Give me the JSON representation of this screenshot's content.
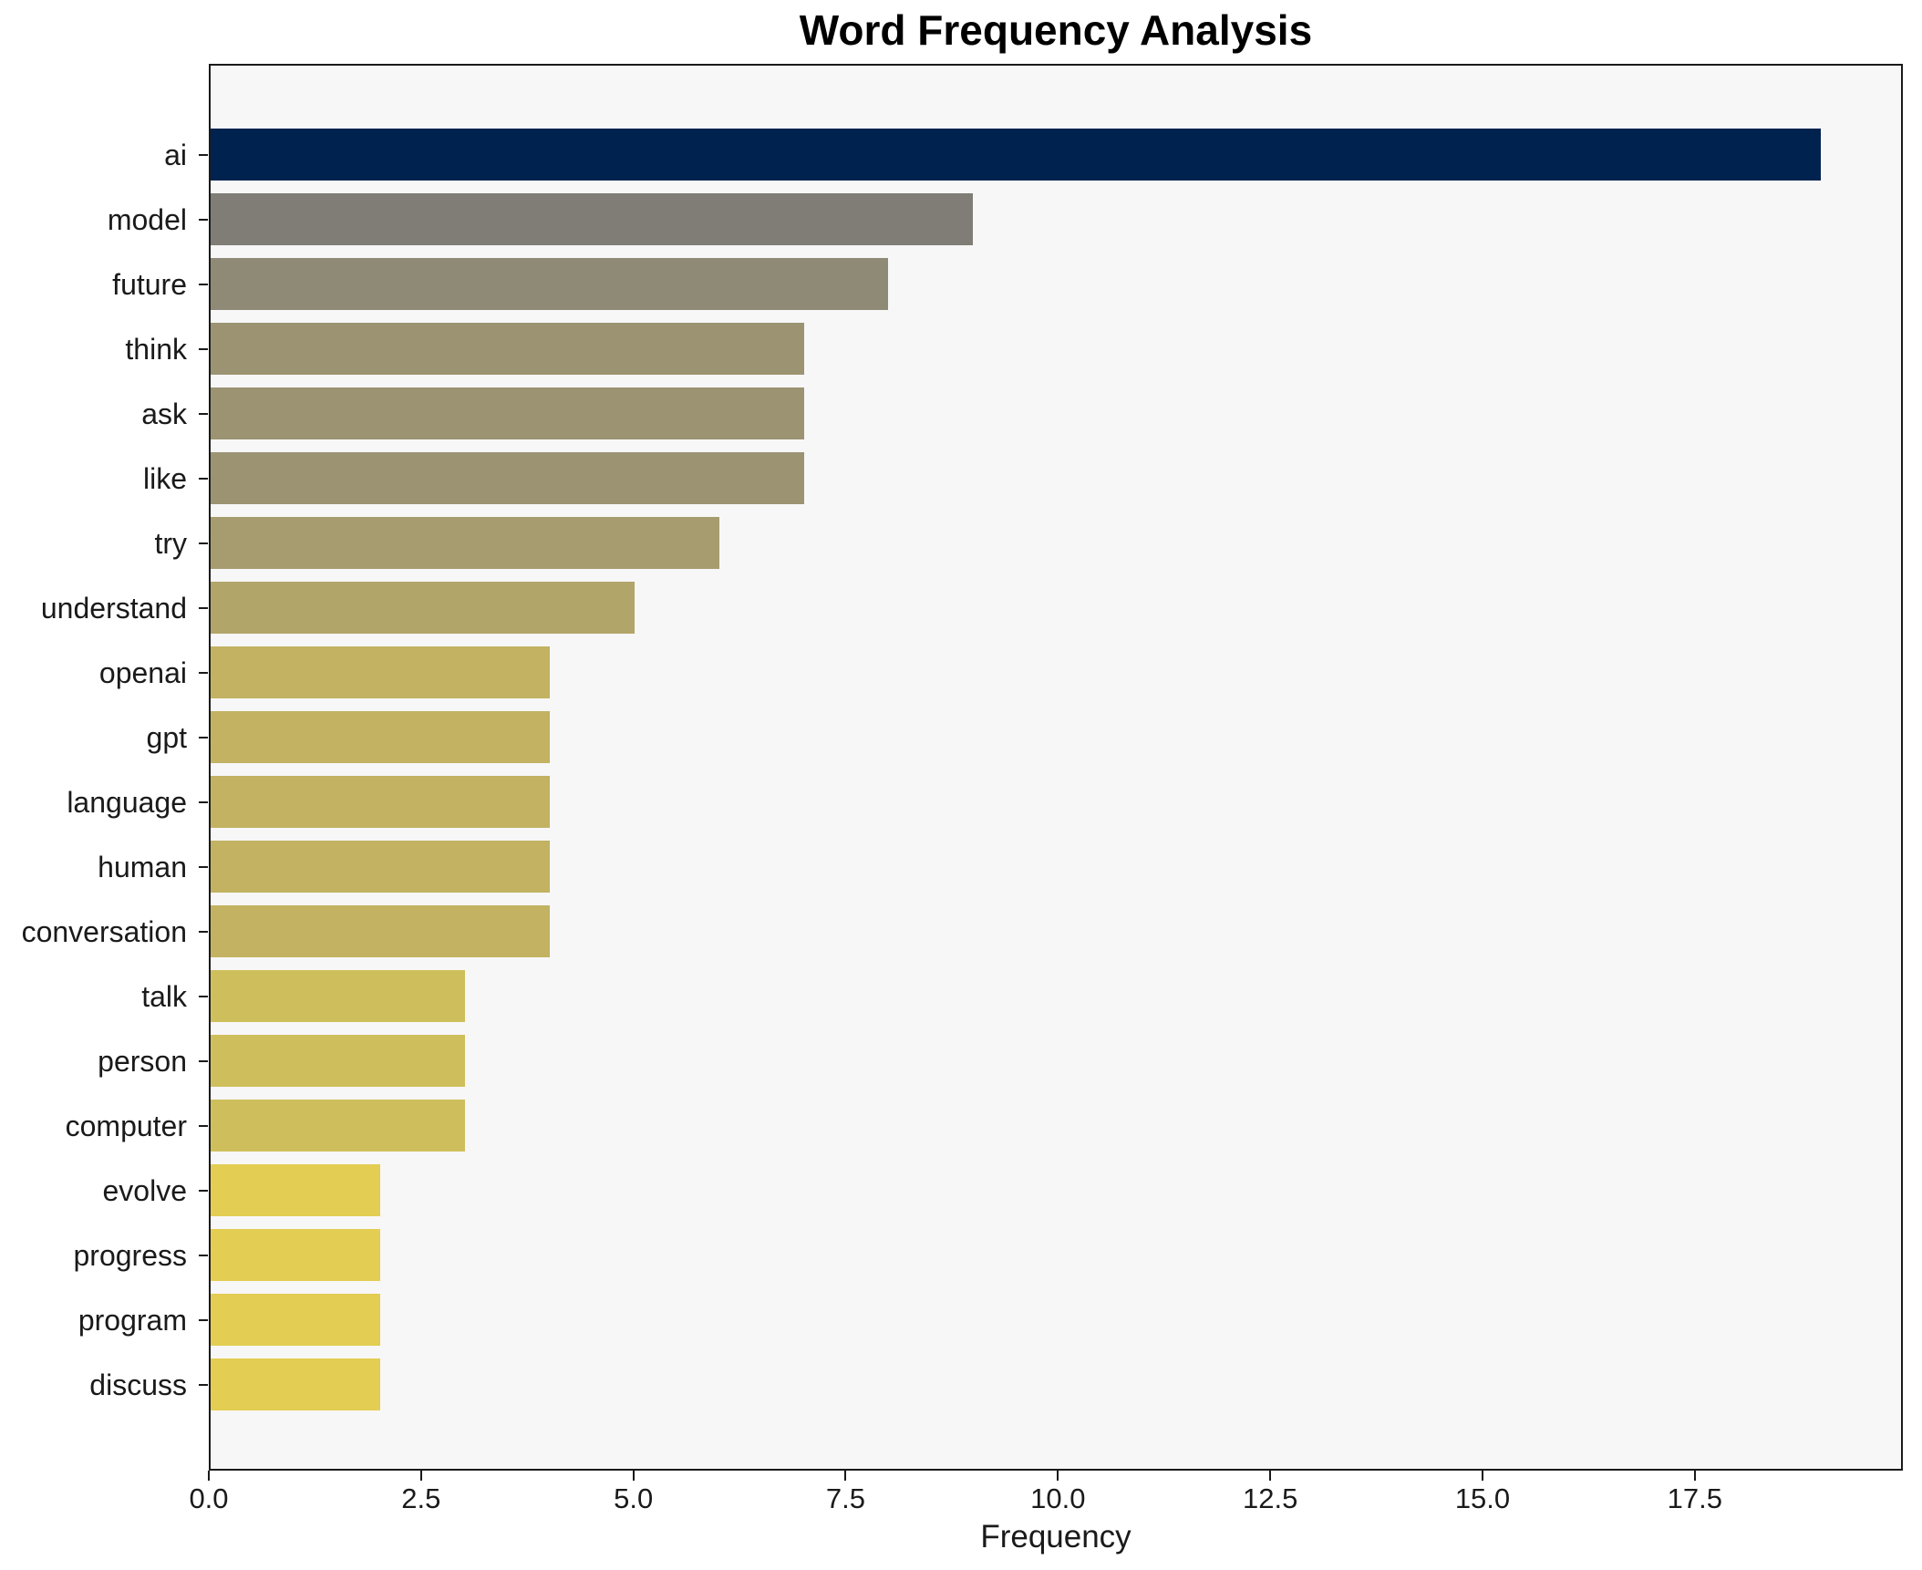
{
  "chart_data": {
    "type": "bar",
    "orientation": "horizontal",
    "title": "Word Frequency Analysis",
    "xlabel": "Frequency",
    "ylabel": "",
    "xlim": [
      0,
      19.95
    ],
    "x_ticks": [
      0.0,
      2.5,
      5.0,
      7.5,
      10.0,
      12.5,
      15.0,
      17.5
    ],
    "x_tick_labels": [
      "0.0",
      "2.5",
      "5.0",
      "7.5",
      "10.0",
      "12.5",
      "15.0",
      "17.5"
    ],
    "grid": false,
    "legend": false,
    "plot_background": "#f7f7f8",
    "figure_background": "#ffffff",
    "spine_color": "#1a1a1a",
    "categories": [
      "ai",
      "model",
      "future",
      "think",
      "ask",
      "like",
      "try",
      "understand",
      "openai",
      "gpt",
      "language",
      "human",
      "conversation",
      "talk",
      "person",
      "computer",
      "evolve",
      "progress",
      "program",
      "discuss"
    ],
    "values": [
      19,
      9,
      8,
      7,
      7,
      7,
      6,
      5,
      4,
      4,
      4,
      4,
      4,
      3,
      3,
      3,
      2,
      2,
      2,
      2
    ],
    "bar_colors": [
      "#00224e",
      "#7f7d75",
      "#8f8a76",
      "#9b9372",
      "#9b9372",
      "#9b9372",
      "#a79c70",
      "#b2a569",
      "#c2b262",
      "#c2b262",
      "#c2b262",
      "#c2b262",
      "#c2b262",
      "#cfbf5c",
      "#cfbf5c",
      "#cfbf5c",
      "#e3cd52",
      "#e3cd52",
      "#e3cd52",
      "#e3cd52"
    ]
  }
}
